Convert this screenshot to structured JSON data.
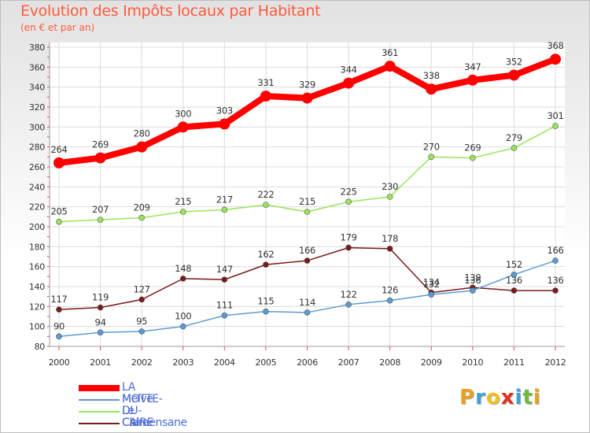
{
  "title": "Evolution des Impôts locaux par Habitant",
  "subtitle": "(en € et par an)",
  "logo": {
    "text": "Proxiti",
    "letters": [
      {
        "ch": "P",
        "color": "#e8a020"
      },
      {
        "ch": "r",
        "color": "#3fa0d8"
      },
      {
        "ch": "o",
        "color": "#f0c020"
      },
      {
        "ch": "x",
        "color": "#e03020"
      },
      {
        "ch": "i",
        "color": "#3fa0d8"
      },
      {
        "ch": "t",
        "color": "#70b840"
      },
      {
        "ch": "i",
        "color": "#e8a020"
      }
    ]
  },
  "chart_data": {
    "type": "line",
    "title": "Evolution des Impôts locaux par Habitant",
    "subtitle": "(en € et par an)",
    "x": [
      "2000",
      "2001",
      "2002",
      "2003",
      "2004",
      "2005",
      "2006",
      "2007",
      "2008",
      "2009",
      "2010",
      "2011",
      "2012"
    ],
    "ylim": [
      80,
      380
    ],
    "yticks": [
      80,
      100,
      120,
      140,
      160,
      180,
      200,
      220,
      240,
      260,
      280,
      300,
      320,
      340,
      360,
      380
    ],
    "grid": true,
    "legend": "bottom-left",
    "series": [
      {
        "name": "LA MOTTE-DU-CAIRE",
        "color": "#ff0000",
        "width": 8,
        "marker": 7,
        "values": [
          264,
          269,
          280,
          300,
          303,
          331,
          329,
          344,
          361,
          338,
          347,
          352,
          368
        ]
      },
      {
        "name": "Melve",
        "color": "#5b9bd5",
        "width": 1.5,
        "marker": 3.5,
        "values": [
          90,
          94,
          95,
          100,
          111,
          115,
          114,
          122,
          126,
          132,
          136,
          152,
          166
        ]
      },
      {
        "name": "Le Caire",
        "color": "#99e55a",
        "width": 1.5,
        "marker": 3.5,
        "values": [
          205,
          207,
          209,
          215,
          217,
          222,
          215,
          225,
          230,
          270,
          269,
          279,
          301
        ]
      },
      {
        "name": "Clamensane",
        "color": "#7a1a1a",
        "width": 1.5,
        "marker": 3.5,
        "values": [
          117,
          119,
          127,
          148,
          147,
          162,
          166,
          179,
          178,
          134,
          139,
          136,
          136
        ]
      }
    ]
  }
}
